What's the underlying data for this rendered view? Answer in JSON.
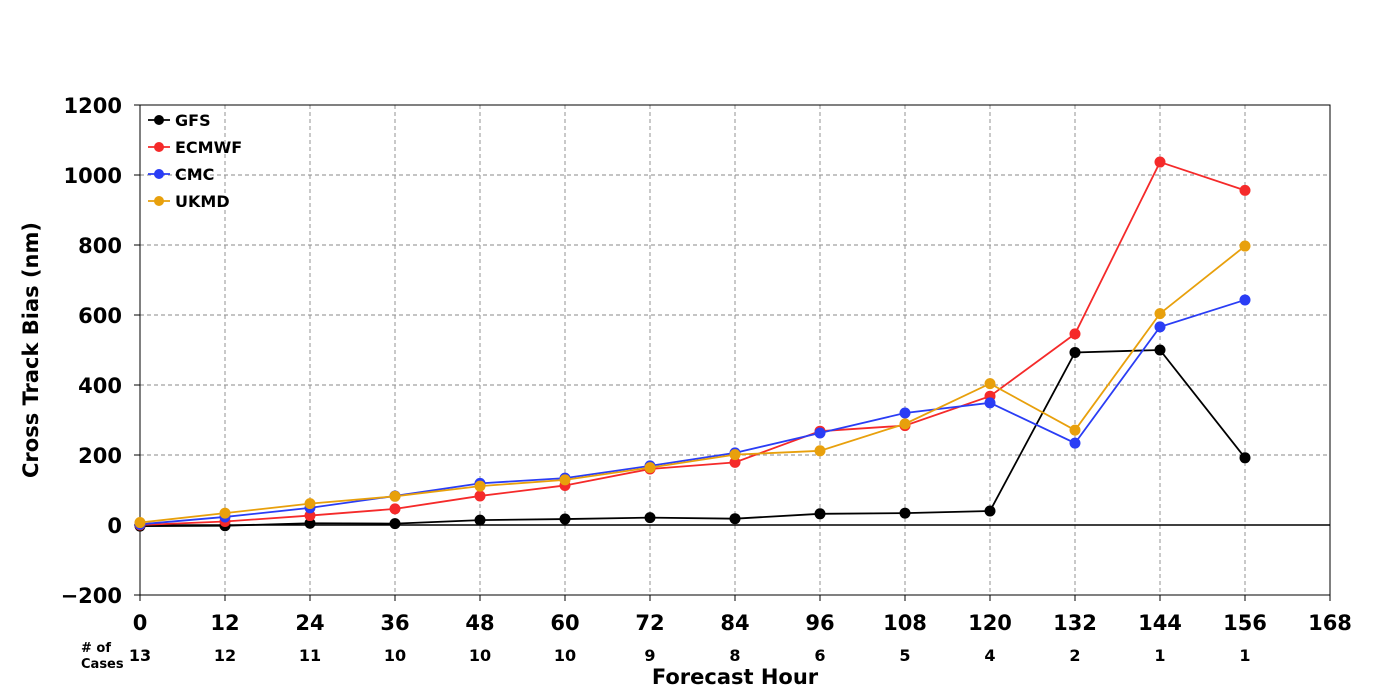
{
  "chart_data": {
    "type": "line",
    "xlabel": "Forecast Hour",
    "ylabel": "Cross Track Bias (nm)",
    "xlim": [
      0,
      168
    ],
    "ylim": [
      -200,
      1200
    ],
    "x_ticks": [
      0,
      12,
      24,
      36,
      48,
      60,
      72,
      84,
      96,
      108,
      120,
      132,
      144,
      156,
      168
    ],
    "y_ticks": [
      -200,
      0,
      200,
      400,
      600,
      800,
      1000,
      1200
    ],
    "y_tick_labels": [
      "−200",
      "0",
      "200",
      "400",
      "600",
      "800",
      "1000",
      "1200"
    ],
    "grid": true,
    "legend_position": "top-left",
    "zero_line": true,
    "cases_label_line1": "# of",
    "cases_label_line2": "Cases",
    "cases": [
      {
        "x": 0,
        "n": "13"
      },
      {
        "x": 12,
        "n": "12"
      },
      {
        "x": 24,
        "n": "11"
      },
      {
        "x": 36,
        "n": "10"
      },
      {
        "x": 48,
        "n": "10"
      },
      {
        "x": 60,
        "n": "10"
      },
      {
        "x": 72,
        "n": "9"
      },
      {
        "x": 84,
        "n": "8"
      },
      {
        "x": 96,
        "n": "6"
      },
      {
        "x": 108,
        "n": "5"
      },
      {
        "x": 120,
        "n": "4"
      },
      {
        "x": 132,
        "n": "2"
      },
      {
        "x": 144,
        "n": "1"
      },
      {
        "x": 156,
        "n": "1"
      }
    ],
    "x": [
      0,
      12,
      24,
      36,
      48,
      60,
      72,
      84,
      96,
      108,
      120,
      132,
      144,
      156
    ],
    "series": [
      {
        "name": "GFS",
        "color": "#000000",
        "values": [
          -3,
          -2,
          5,
          4,
          14,
          17,
          21,
          18,
          32,
          34,
          40,
          493,
          500,
          192
        ]
      },
      {
        "name": "ECMWF",
        "color": "#f52a2a",
        "values": [
          0,
          10,
          27,
          46,
          83,
          113,
          160,
          179,
          268,
          284,
          368,
          546,
          1037,
          956
        ]
      },
      {
        "name": "CMC",
        "color": "#2a3df5",
        "values": [
          2,
          23,
          49,
          83,
          119,
          134,
          169,
          206,
          263,
          320,
          349,
          234,
          566,
          643
        ]
      },
      {
        "name": "UKMD",
        "color": "#e8a00c",
        "values": [
          7,
          34,
          61,
          82,
          111,
          129,
          164,
          201,
          212,
          289,
          404,
          271,
          604,
          797
        ]
      }
    ]
  }
}
